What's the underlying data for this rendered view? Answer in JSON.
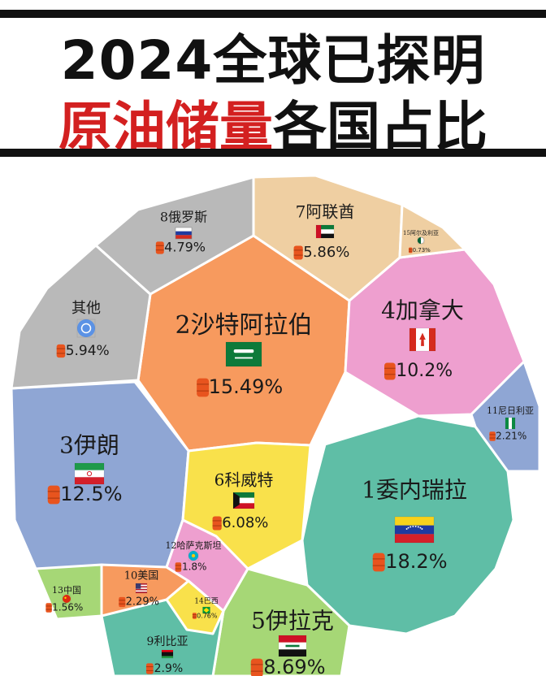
{
  "title": {
    "line1": "2024全球已探明",
    "line2_red": "原油储量",
    "line2_black": "各国占比"
  },
  "chart_data": {
    "type": "voronoi-treemap",
    "title": "2024全球已探明原油储量各国占比",
    "series": [
      {
        "name": "1委内瑞拉",
        "value": 18.2,
        "label": "18.2%",
        "color": "#5fbea6",
        "flag": "venezuela-flag-icon"
      },
      {
        "name": "2沙特阿拉伯",
        "value": 15.49,
        "label": "15.49%",
        "color": "#f79a5e",
        "flag": "saudi-flag-icon"
      },
      {
        "name": "3伊朗",
        "value": 12.5,
        "label": "12.5%",
        "color": "#8fa6d4",
        "flag": "iran-flag-icon"
      },
      {
        "name": "4加拿大",
        "value": 10.2,
        "label": "10.2%",
        "color": "#ee9fcf",
        "flag": "canada-flag-icon"
      },
      {
        "name": "5伊拉克",
        "value": 8.69,
        "label": "8.69%",
        "color": "#a6d776",
        "flag": "iraq-flag-icon"
      },
      {
        "name": "6科威特",
        "value": 6.08,
        "label": "6.08%",
        "color": "#f9e14b",
        "flag": "kuwait-flag-icon"
      },
      {
        "name": "7阿联酋",
        "value": 5.86,
        "label": "5.86%",
        "color": "#efcfa2",
        "flag": "uae-flag-icon"
      },
      {
        "name": "其他",
        "value": 5.94,
        "label": "5.94%",
        "color": "#b9b9b9",
        "flag": "un-flag-icon"
      },
      {
        "name": "8俄罗斯",
        "value": 4.79,
        "label": "4.79%",
        "color": "#b9b9b9",
        "flag": "russia-flag-icon"
      },
      {
        "name": "9利比亚",
        "value": 2.9,
        "label": "2.9%",
        "color": "#5fbea6",
        "flag": "libya-flag-icon"
      },
      {
        "name": "10美国",
        "value": 2.29,
        "label": "2.29%",
        "color": "#f79a5e",
        "flag": "usa-flag-icon"
      },
      {
        "name": "11尼日利亚",
        "value": 2.21,
        "label": "2.21%",
        "color": "#8fa6d4",
        "flag": "nigeria-flag-icon"
      },
      {
        "name": "12哈萨克斯坦",
        "value": 1.8,
        "label": "1.8%",
        "color": "#ee9fcf",
        "flag": "kazakhstan-flag-icon"
      },
      {
        "name": "13中国",
        "value": 1.56,
        "label": "1.56%",
        "color": "#a6d776",
        "flag": "china-flag-icon"
      },
      {
        "name": "14巴西",
        "value": 0.76,
        "label": "0.76%",
        "color": "#f9e14b",
        "flag": "brazil-flag-icon"
      },
      {
        "name": "15阿尔及利亚",
        "value": 0.73,
        "label": "0.73%",
        "color": "#efcfa2",
        "flag": "algeria-flag-icon"
      }
    ],
    "oil_barrel_color": "#e8541e"
  }
}
